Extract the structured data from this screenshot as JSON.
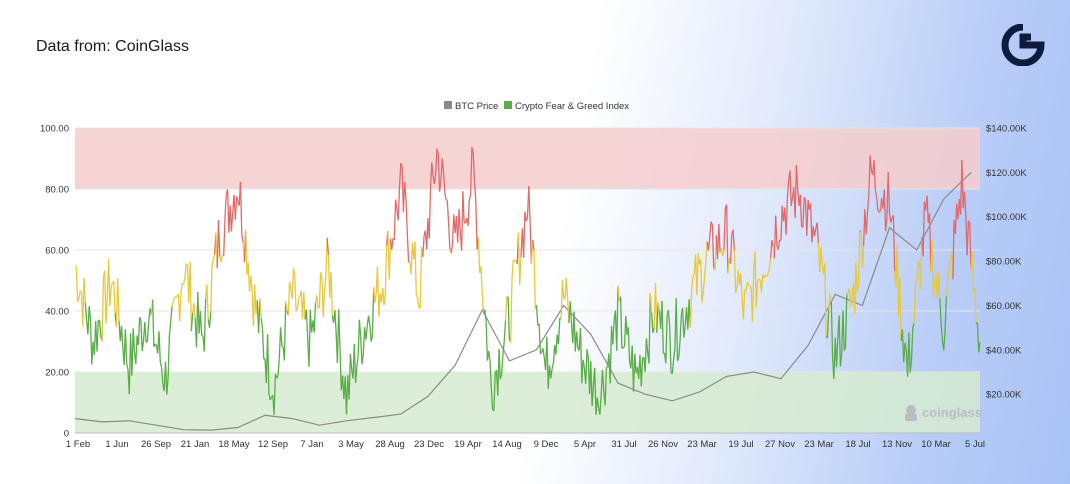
{
  "header": {
    "source": "Data from: CoinGlass"
  },
  "watermark": {
    "text": "coinglass",
    "icon": "coinglass-logo-icon"
  },
  "brand_logo": {
    "icon": "brand-g-logo-icon",
    "color": "#0d1b3e"
  },
  "colors": {
    "btc": "#8a8a8a",
    "fear_extreme": "#5aad46",
    "fear": "#5aad46",
    "neutral": "#e7c93a",
    "greed": "#e06a6a",
    "extreme_greed_band": "#f6cdcd",
    "extreme_fear_band": "#d6ebd0"
  },
  "chart_data": {
    "type": "line",
    "legend": [
      "BTC Price",
      "Crypto Fear & Greed Index"
    ],
    "legend_position": "top-center",
    "left_axis": {
      "ticks": [
        "0",
        "20.00",
        "40.00",
        "60.00",
        "80.00",
        "100.00"
      ],
      "ylim": [
        0,
        100
      ]
    },
    "right_axis": {
      "ticks": [
        "$20.00K",
        "$40.00K",
        "$60.00K",
        "$80.00K",
        "$100.00K",
        "$120.00K",
        "$140.00K"
      ],
      "ylim": [
        2500,
        140000
      ]
    },
    "x_tick_labels": [
      "1 Feb",
      "1 Jun",
      "26 Sep",
      "21 Jan",
      "18 May",
      "12 Sep",
      "7 Jan",
      "3 May",
      "28 Aug",
      "23 Dec",
      "19 Apr",
      "14 Aug",
      "9 Dec",
      "5 Apr",
      "31 Jul",
      "26 Nov",
      "23 Mar",
      "19 Jul",
      "27 Nov",
      "23 Mar",
      "18 Jul",
      "13 Nov",
      "10 Mar",
      "5 Jul"
    ],
    "bands": [
      {
        "name": "extreme greed",
        "from": 80,
        "to": 100
      },
      {
        "name": "extreme fear",
        "from": 0,
        "to": 20
      }
    ],
    "color_thresholds": [
      20,
      40,
      60,
      80
    ],
    "series": [
      {
        "name": "Crypto Fear & Greed Index",
        "axis": "left",
        "x": [
          0,
          0.02,
          0.04,
          0.06,
          0.08,
          0.1,
          0.12,
          0.14,
          0.16,
          0.18,
          0.2,
          0.22,
          0.24,
          0.26,
          0.28,
          0.3,
          0.32,
          0.34,
          0.36,
          0.38,
          0.4,
          0.42,
          0.44,
          0.46,
          0.48,
          0.5,
          0.52,
          0.54,
          0.56,
          0.58,
          0.6,
          0.62,
          0.64,
          0.66,
          0.68,
          0.7,
          0.72,
          0.74,
          0.76,
          0.78,
          0.8,
          0.82,
          0.84,
          0.86,
          0.88,
          0.9,
          0.92,
          0.94,
          0.96,
          0.98,
          1.0
        ],
        "values": [
          55,
          30,
          50,
          22,
          40,
          18,
          55,
          30,
          65,
          82,
          40,
          15,
          45,
          30,
          55,
          12,
          35,
          50,
          80,
          45,
          92,
          60,
          85,
          15,
          38,
          75,
          20,
          45,
          25,
          12,
          38,
          18,
          40,
          30,
          45,
          58,
          65,
          40,
          55,
          72,
          80,
          60,
          25,
          45,
          85,
          75,
          20,
          70,
          35,
          82,
          30
        ]
      },
      {
        "name": "BTC Price",
        "axis": "right",
        "x": [
          0,
          0.03,
          0.06,
          0.09,
          0.12,
          0.15,
          0.18,
          0.21,
          0.24,
          0.27,
          0.3,
          0.33,
          0.36,
          0.39,
          0.42,
          0.45,
          0.48,
          0.51,
          0.54,
          0.57,
          0.6,
          0.63,
          0.66,
          0.69,
          0.72,
          0.75,
          0.78,
          0.81,
          0.84,
          0.87,
          0.9,
          0.93,
          0.96,
          0.99
        ],
        "values": [
          9000,
          7500,
          8000,
          6000,
          4000,
          3800,
          5000,
          10500,
          9000,
          6000,
          8000,
          9500,
          11000,
          19000,
          33000,
          58000,
          35000,
          40000,
          60000,
          47000,
          25000,
          20000,
          17000,
          21000,
          28000,
          30000,
          27000,
          42000,
          65000,
          60000,
          95000,
          85000,
          108000,
          120000
        ]
      }
    ]
  }
}
